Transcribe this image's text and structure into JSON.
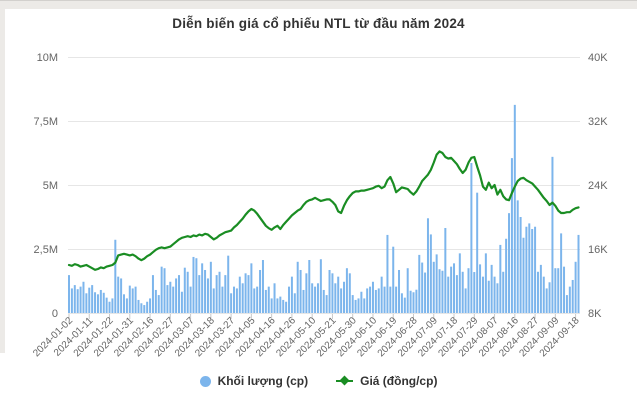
{
  "page": {
    "title": "Diễn biến giá cổ phiếu NTL từ đầu năm 2024"
  },
  "legend": {
    "volume_label": "Khối lượng (cp)",
    "price_label": "Giá (đồng/cp)"
  },
  "colors": {
    "volume": "#7cb5ec",
    "price": "#1a8d23",
    "grid": "#e6e6e6",
    "axis_tick": "#c9c9c9",
    "axis_text": "#666666",
    "title_text": "#333333"
  },
  "chart_data": {
    "type": "combo",
    "title": "Diễn biến giá cổ phiếu NTL từ đầu năm 2024",
    "legend_position": "bottom",
    "grid": "horizontal-only",
    "x_tick_labels": [
      "2024-01-02",
      "2024-01-11",
      "2024-01-22",
      "2024-01-31",
      "2024-02-16",
      "2024-02-27",
      "2024-03-07",
      "2024-03-18",
      "2024-03-27",
      "2024-04-05",
      "2024-04-16",
      "2024-04-26",
      "2024-05-10",
      "2024-05-21",
      "2024-05-30",
      "2024-06-10",
      "2024-06-19",
      "2024-06-28",
      "2024-07-09",
      "2024-07-18",
      "2024-07-29",
      "2024-08-07",
      "2024-08-16",
      "2024-08-27",
      "2024-09-09",
      "2024-09-18"
    ],
    "points_per_tick": 7,
    "y_left_axis": {
      "series": "Khối lượng (cp)",
      "min": 0,
      "max": 10000000,
      "tick_labels_top_to_bottom": [
        "10M",
        "7,5M",
        "5M",
        "2,5M",
        "0"
      ]
    },
    "y_right_axis": {
      "series": "Giá (đồng/cp)",
      "min": 8000,
      "max": 40000,
      "tick_labels_top_to_bottom": [
        "40K",
        "32K",
        "24K",
        "16K",
        "8K"
      ]
    },
    "series": [
      {
        "name": "Khối lượng (cp)",
        "type": "bar",
        "axis": "left",
        "unit": "triệu cổ phiếu",
        "values_millions": [
          1.48,
          0.96,
          1.09,
          0.93,
          1.03,
          1.22,
          0.77,
          0.99,
          1.09,
          0.81,
          0.73,
          0.9,
          0.79,
          0.6,
          0.44,
          0.57,
          2.86,
          1.42,
          1.35,
          0.73,
          0.57,
          1.07,
          0.96,
          1.03,
          0.51,
          0.38,
          0.31,
          0.44,
          0.57,
          1.48,
          0.9,
          0.7,
          1.81,
          1.75,
          1.09,
          1.22,
          1.03,
          1.35,
          1.48,
          0.83,
          1.77,
          1.61,
          1.03,
          2.19,
          2.14,
          1.48,
          1.94,
          1.68,
          1.35,
          2.0,
          0.96,
          1.48,
          1.61,
          1.03,
          1.48,
          2.24,
          0.77,
          1.03,
          0.96,
          1.42,
          1.16,
          1.55,
          1.48,
          1.94,
          0.96,
          1.03,
          1.68,
          2.07,
          0.9,
          1.03,
          0.57,
          1.16,
          0.57,
          0.64,
          0.51,
          0.44,
          1.03,
          1.42,
          0.77,
          2.0,
          1.68,
          0.9,
          1.55,
          2.07,
          1.16,
          1.03,
          1.16,
          2.1,
          0.9,
          0.7,
          1.68,
          1.55,
          1.16,
          1.42,
          0.96,
          1.22,
          1.75,
          1.55,
          0.7,
          0.51,
          0.57,
          0.83,
          0.57,
          0.96,
          1.03,
          1.22,
          0.9,
          0.96,
          1.42,
          1.03,
          3.05,
          1.03,
          2.59,
          1.03,
          1.68,
          0.77,
          0.6,
          1.75,
          0.87,
          0.81,
          0.91,
          2.27,
          1.97,
          1.58,
          3.7,
          3.07,
          2.0,
          2.29,
          1.71,
          1.65,
          3.32,
          1.42,
          1.81,
          1.94,
          1.48,
          2.33,
          1.61,
          0.96,
          1.75,
          5.86,
          1.6,
          4.7,
          1.9,
          1.42,
          2.33,
          1.26,
          1.88,
          1.42,
          1.16,
          2.66,
          1.61,
          2.9,
          3.9,
          6.05,
          8.13,
          4.4,
          3.75,
          2.94,
          3.37,
          3.5,
          3.28,
          3.37,
          1.61,
          1.88,
          1.42,
          0.96,
          1.2,
          6.1,
          1.75,
          1.75,
          3.11,
          1.81,
          0.7,
          1.03,
          1.29,
          2.0,
          3.05
        ]
      },
      {
        "name": "Giá (đồng/cp)",
        "type": "line",
        "axis": "right",
        "unit": "nghìn đồng/cp",
        "values_thousands": [
          14.0,
          13.9,
          14.1,
          14.0,
          13.8,
          13.9,
          14.0,
          13.8,
          13.6,
          13.4,
          13.5,
          13.7,
          13.6,
          13.8,
          13.9,
          14.0,
          14.3,
          15.2,
          15.3,
          15.4,
          15.3,
          15.2,
          15.3,
          15.1,
          14.8,
          14.6,
          14.8,
          15.1,
          15.3,
          15.6,
          15.9,
          16.1,
          16.2,
          16.1,
          16.2,
          16.3,
          16.6,
          16.9,
          17.2,
          17.4,
          17.5,
          17.6,
          17.5,
          17.7,
          17.6,
          17.8,
          17.7,
          17.9,
          17.8,
          17.5,
          17.2,
          17.4,
          17.7,
          17.9,
          18.1,
          18.2,
          18.3,
          18.7,
          19.0,
          19.4,
          19.8,
          20.3,
          20.7,
          21.0,
          20.8,
          20.4,
          19.9,
          19.4,
          18.9,
          18.6,
          18.4,
          18.7,
          18.9,
          18.5,
          19.0,
          19.4,
          19.8,
          20.2,
          20.5,
          20.8,
          21.0,
          21.5,
          21.9,
          22.1,
          22.2,
          22.4,
          22.2,
          22.0,
          22.1,
          22.2,
          22.2,
          21.9,
          21.5,
          20.7,
          20.5,
          21.4,
          22.1,
          22.6,
          23.0,
          23.2,
          23.2,
          23.3,
          23.3,
          23.4,
          23.5,
          23.6,
          23.8,
          23.9,
          23.6,
          23.8,
          24.6,
          25.0,
          24.2,
          23.1,
          23.4,
          23.7,
          23.6,
          23.5,
          23.1,
          22.8,
          23.2,
          23.8,
          24.5,
          24.9,
          25.3,
          25.9,
          26.8,
          27.8,
          28.2,
          28.0,
          27.5,
          27.3,
          27.4,
          27.0,
          26.6,
          26.0,
          25.5,
          25.9,
          26.8,
          27.4,
          27.5,
          26.3,
          25.2,
          23.8,
          23.4,
          24.3,
          23.6,
          24.0,
          22.8,
          23.4,
          22.6,
          22.2,
          22.1,
          23.0,
          23.8,
          24.5,
          24.8,
          24.9,
          24.6,
          24.4,
          24.2,
          23.8,
          23.4,
          22.9,
          22.4,
          22.0,
          21.5,
          21.8,
          21.4,
          20.8,
          20.5,
          20.5,
          20.6,
          20.6,
          20.9,
          21.1,
          21.2
        ]
      }
    ]
  }
}
